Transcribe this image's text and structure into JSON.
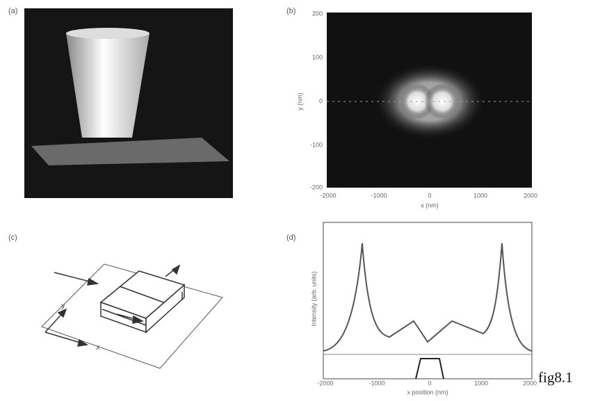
{
  "figure": {
    "caption": "fig8.1",
    "panels": [
      {
        "label": "(a)"
      },
      {
        "label": "(b)",
        "x_label": "x (nm)",
        "y_label": "y (nm)",
        "x_ticks": [
          -2000,
          -1000,
          0,
          1000,
          2000
        ],
        "y_ticks": [
          200,
          100,
          0,
          -100,
          -200
        ]
      },
      {
        "label": "(c)",
        "axis_labels": [
          "y",
          "x"
        ]
      },
      {
        "label": "(d)",
        "x_label": "x position (nm)",
        "y_label": "Intensity (arb. units)",
        "x_ticks": [
          -2000,
          -1000,
          0,
          1000,
          2000
        ]
      }
    ]
  }
}
